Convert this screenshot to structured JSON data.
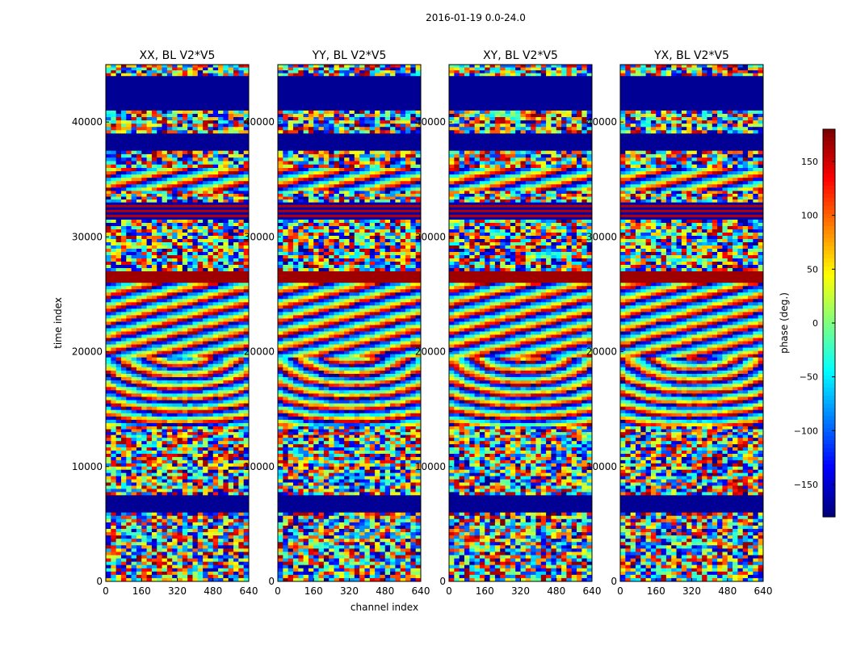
{
  "chart_data": {
    "type": "heatmap",
    "title": "2016-01-19 0.0-24.0",
    "xlabel": "channel index",
    "ylabel": "time index",
    "xlim": [
      0,
      640
    ],
    "ylim": [
      0,
      45000
    ],
    "xticks": [
      "0",
      "160",
      "320",
      "480",
      "640"
    ],
    "yticks": [
      "0",
      "10000",
      "20000",
      "30000",
      "40000"
    ],
    "panels": [
      {
        "title": "XX, BL V2*V5",
        "pol": "XX"
      },
      {
        "title": "YY, BL V2*V5",
        "pol": "YY"
      },
      {
        "title": "XY, BL V2*V5",
        "pol": "XY"
      },
      {
        "title": "YX, BL V2*V5",
        "pol": "YX"
      }
    ],
    "colorbar": {
      "label": "phase (deg.)",
      "range": [
        -180,
        180
      ],
      "ticks": [
        "−150",
        "−100",
        "−50",
        "0",
        "50",
        "100",
        "150"
      ],
      "colormap": "jet"
    },
    "bands": [
      {
        "from": 44000,
        "to": 45000,
        "pattern": "noisy"
      },
      {
        "from": 41000,
        "to": 44000,
        "pattern": "solid-low"
      },
      {
        "from": 39000,
        "to": 41000,
        "pattern": "noisy"
      },
      {
        "from": 37500,
        "to": 39000,
        "pattern": "solid-low"
      },
      {
        "from": 36000,
        "to": 37500,
        "pattern": "noisy"
      },
      {
        "from": 34000,
        "to": 36000,
        "pattern": "fringe"
      },
      {
        "from": 33000,
        "to": 34000,
        "pattern": "noisy"
      },
      {
        "from": 31500,
        "to": 33000,
        "pattern": "solid-mixed"
      },
      {
        "from": 27000,
        "to": 31500,
        "pattern": "noisy"
      },
      {
        "from": 26000,
        "to": 27000,
        "pattern": "solid-high"
      },
      {
        "from": 19500,
        "to": 26000,
        "pattern": "fringe"
      },
      {
        "from": 13500,
        "to": 19500,
        "pattern": "arcs"
      },
      {
        "from": 12500,
        "to": 13500,
        "pattern": "noisy"
      },
      {
        "from": 7500,
        "to": 12500,
        "pattern": "noisy"
      },
      {
        "from": 6000,
        "to": 7500,
        "pattern": "solid-low"
      },
      {
        "from": 0,
        "to": 6000,
        "pattern": "noisy"
      }
    ]
  }
}
